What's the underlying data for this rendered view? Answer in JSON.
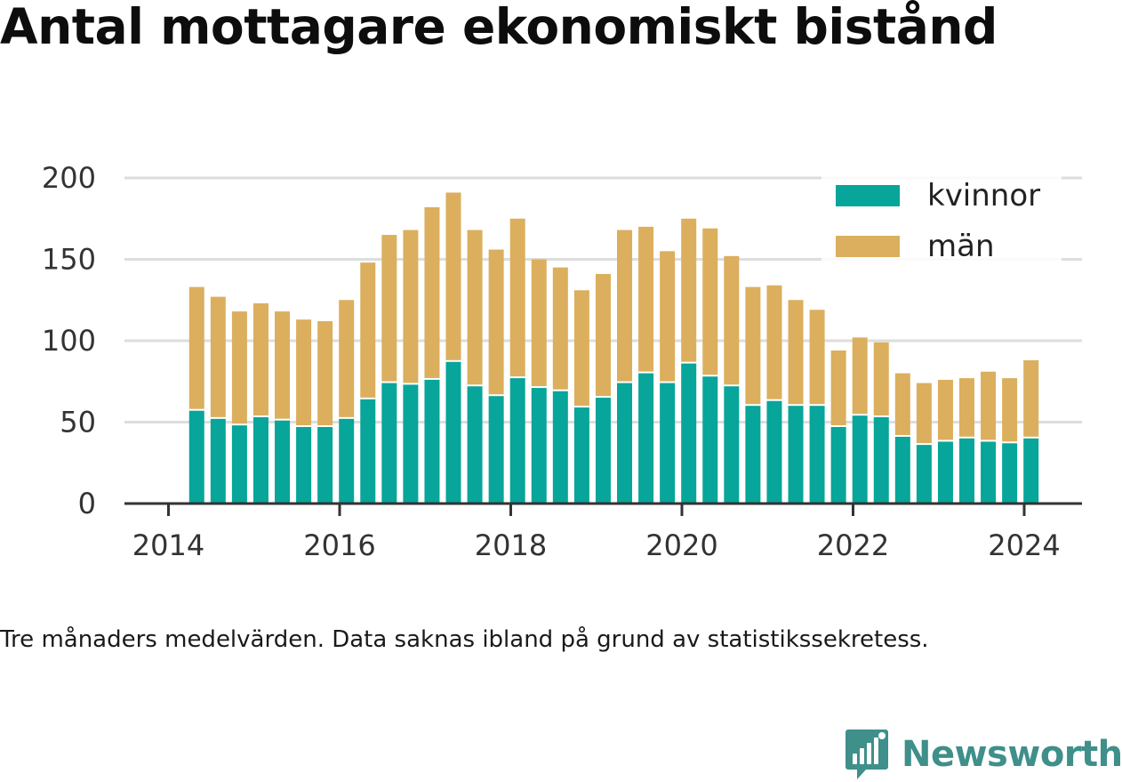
{
  "title": "Antal mottagare ekonomiskt bistånd",
  "caption": "Tre månaders medelvärden. Data saknas ibland på grund av statistikssekretess.",
  "brand": "Newsworthy",
  "colors": {
    "kvinnor": "#07a59a",
    "man": "#dbaf5d",
    "grid": "#dddddd",
    "axis": "#333333",
    "brand": "#3f8f8a"
  },
  "chart_data": {
    "type": "bar",
    "stacked": true,
    "xlim": [
      2014,
      2024.4
    ],
    "ylim": [
      0,
      200
    ],
    "x_ticks": [
      "2014",
      "2016",
      "2018",
      "2020",
      "2022",
      "2024"
    ],
    "y_ticks": [
      "0",
      "50",
      "100",
      "150",
      "200"
    ],
    "legend_position": "top-right",
    "grid": true,
    "x": [
      2014.33,
      2014.58,
      2014.83,
      2015.08,
      2015.33,
      2015.58,
      2015.83,
      2016.08,
      2016.33,
      2016.58,
      2016.83,
      2017.08,
      2017.33,
      2017.58,
      2017.83,
      2018.08,
      2018.33,
      2018.58,
      2018.83,
      2019.08,
      2019.33,
      2019.58,
      2019.83,
      2020.08,
      2020.33,
      2020.58,
      2020.83,
      2021.08,
      2021.33,
      2021.58,
      2021.83,
      2022.08,
      2022.33,
      2022.58,
      2022.83,
      2023.08,
      2023.33,
      2023.58,
      2023.83,
      2024.08
    ],
    "series": [
      {
        "name": "kvinnor",
        "values": [
          57,
          52,
          48,
          53,
          51,
          47,
          47,
          52,
          64,
          74,
          73,
          76,
          87,
          72,
          66,
          77,
          71,
          69,
          59,
          65,
          74,
          80,
          74,
          86,
          78,
          72,
          60,
          63,
          60,
          60,
          47,
          54,
          53,
          41,
          36,
          38,
          40,
          38,
          37,
          40
        ]
      },
      {
        "name": "män",
        "values": [
          76,
          75,
          70,
          70,
          67,
          66,
          65,
          73,
          84,
          91,
          95,
          106,
          104,
          96,
          90,
          98,
          79,
          76,
          72,
          76,
          94,
          90,
          81,
          89,
          91,
          80,
          73,
          71,
          65,
          59,
          47,
          48,
          46,
          39,
          38,
          38,
          37,
          43,
          40,
          48
        ]
      }
    ]
  }
}
